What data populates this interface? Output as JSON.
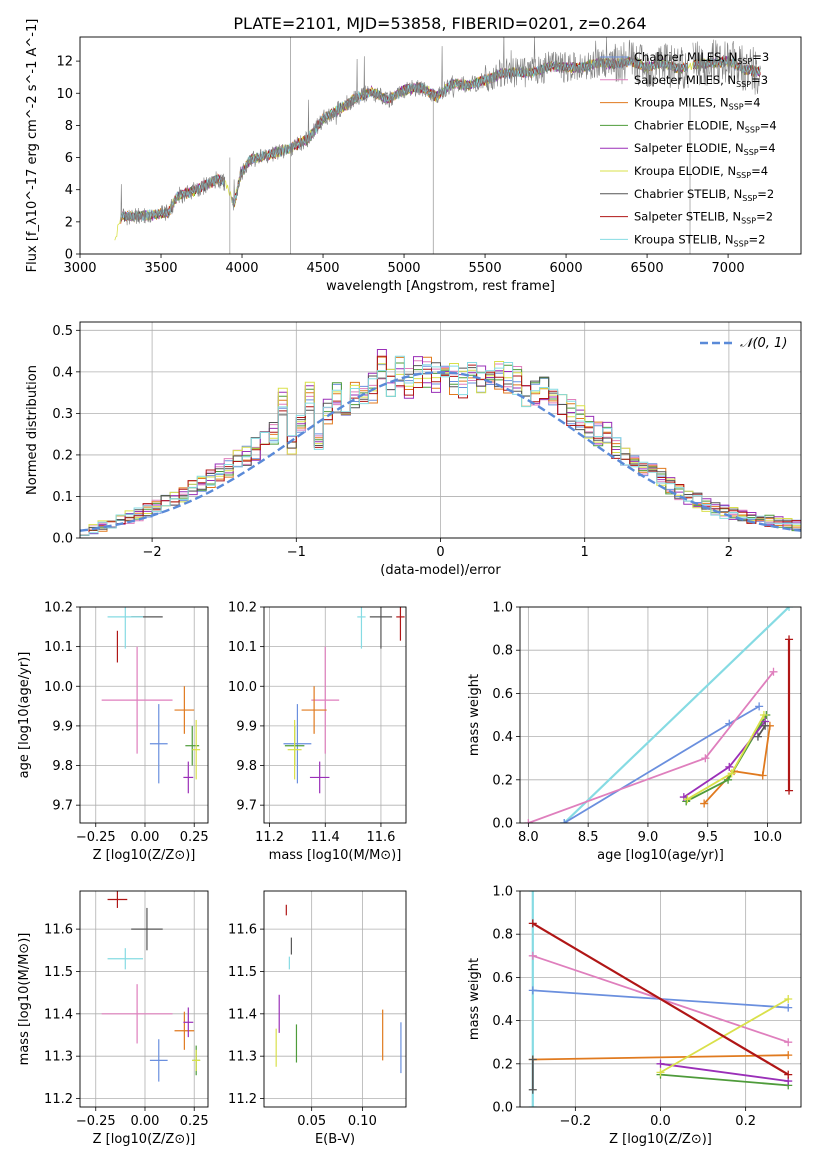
{
  "figure": {
    "title": "PLATE=2101, MJD=53858, FIBERID=0201, z=0.264"
  },
  "series_styles": [
    {
      "name": "Chabrier MILES",
      "nssp": "3",
      "color": "#6a8fde"
    },
    {
      "name": "Salpeter MILES",
      "nssp": "3",
      "color": "#df7fbd"
    },
    {
      "name": "Kroupa MILES",
      "nssp": "4",
      "color": "#e07a1f"
    },
    {
      "name": "Chabrier ELODIE",
      "nssp": "4",
      "color": "#4e9b3a"
    },
    {
      "name": "Salpeter ELODIE",
      "nssp": "4",
      "color": "#9a2fb8"
    },
    {
      "name": "Kroupa ELODIE",
      "nssp": "4",
      "color": "#d9e04a"
    },
    {
      "name": "Chabrier STELIB",
      "nssp": "2",
      "color": "#555555"
    },
    {
      "name": "Salpeter STELIB",
      "nssp": "2",
      "color": "#b01616"
    },
    {
      "name": "Kroupa STELIB",
      "nssp": "2",
      "color": "#86dbe3"
    }
  ],
  "chart_data": [
    {
      "id": "spectrum",
      "type": "line",
      "xlabel": "wavelength [Angstrom, rest frame]",
      "ylabel": "Flux [f_λ10^-17 erg cm^-2 s^-1 A^-1]",
      "xlim": [
        3000,
        7450
      ],
      "ylim": [
        0,
        13.5
      ],
      "xticks": [
        3000,
        3500,
        4000,
        4500,
        5000,
        5500,
        6000,
        6500,
        7000
      ],
      "yticks": [
        0,
        2,
        4,
        6,
        8,
        10,
        12
      ],
      "legend": "top-right",
      "data_color": "#808080",
      "continuum": [
        [
          3210,
          0.4
        ],
        [
          3230,
          1.6
        ],
        [
          3260,
          2.4
        ],
        [
          3300,
          2.3
        ],
        [
          3400,
          2.4
        ],
        [
          3500,
          2.5
        ],
        [
          3550,
          2.6
        ],
        [
          3600,
          3.6
        ],
        [
          3700,
          3.9
        ],
        [
          3800,
          4.4
        ],
        [
          3850,
          4.7
        ],
        [
          3900,
          4.4
        ],
        [
          3950,
          3.0
        ],
        [
          3990,
          4.9
        ],
        [
          4050,
          5.9
        ],
        [
          4150,
          6.1
        ],
        [
          4300,
          6.6
        ],
        [
          4400,
          7.1
        ],
        [
          4500,
          8.4
        ],
        [
          4600,
          9.0
        ],
        [
          4700,
          9.7
        ],
        [
          4800,
          10.1
        ],
        [
          4900,
          9.6
        ],
        [
          5000,
          10.2
        ],
        [
          5100,
          10.4
        ],
        [
          5200,
          9.8
        ],
        [
          5300,
          10.6
        ],
        [
          5400,
          10.5
        ],
        [
          5500,
          10.8
        ],
        [
          5600,
          11.2
        ],
        [
          5700,
          11.3
        ],
        [
          5800,
          11.3
        ],
        [
          5900,
          11.7
        ],
        [
          6000,
          11.6
        ],
        [
          6100,
          11.6
        ],
        [
          6200,
          11.9
        ],
        [
          6300,
          11.8
        ],
        [
          6400,
          12.0
        ],
        [
          6500,
          11.6
        ],
        [
          6600,
          11.9
        ],
        [
          6700,
          11.5
        ],
        [
          6800,
          11.8
        ],
        [
          6900,
          11.9
        ],
        [
          7000,
          12.0
        ],
        [
          7100,
          11.5
        ],
        [
          7200,
          11.3
        ]
      ],
      "gaps": [
        [
          3210,
          3250
        ],
        [
          3895,
          3935
        ],
        [
          6755,
          6780
        ]
      ]
    },
    {
      "id": "residuals",
      "type": "histogram",
      "xlabel": "(data-model)/error",
      "ylabel": "Normed distribution",
      "xlim": [
        -2.5,
        2.5
      ],
      "ylim": [
        0,
        0.52
      ],
      "xticks": [
        -2,
        -1,
        0,
        1,
        2
      ],
      "xticklabels": [
        "−2",
        "−1",
        "0",
        "1",
        "2"
      ],
      "yticks": [
        0,
        0.1,
        0.2,
        0.3,
        0.4,
        0.5
      ],
      "yticklabels": [
        "0.0",
        "0.1",
        "0.2",
        "0.3",
        "0.4",
        "0.5"
      ],
      "bin_width": 0.1,
      "legend": "top-right",
      "gauss_label": "𝒩(0, 1)",
      "gauss_color": "#5a8ad8",
      "hist_values": [
        0.02,
        0.022,
        0.03,
        0.035,
        0.042,
        0.05,
        0.057,
        0.066,
        0.075,
        0.085,
        0.095,
        0.106,
        0.118,
        0.131,
        0.143,
        0.157,
        0.171,
        0.186,
        0.2,
        0.215,
        0.23,
        0.248,
        0.33,
        0.225,
        0.272,
        0.345,
        0.23,
        0.3,
        0.34,
        0.28,
        0.35,
        0.355,
        0.36,
        0.42,
        0.38,
        0.405,
        0.37,
        0.4,
        0.395,
        0.385,
        0.4,
        0.38,
        0.37,
        0.385,
        0.375,
        0.39,
        0.39,
        0.385,
        0.38,
        0.34,
        0.35,
        0.36,
        0.33,
        0.32,
        0.3,
        0.29,
        0.27,
        0.25,
        0.25,
        0.22,
        0.2,
        0.19,
        0.175,
        0.16,
        0.145,
        0.125,
        0.11,
        0.1,
        0.09,
        0.08,
        0.07,
        0.064,
        0.058,
        0.052,
        0.047,
        0.043,
        0.04,
        0.037,
        0.034,
        0.032
      ]
    },
    {
      "id": "age-vs-Z",
      "type": "errorbar",
      "xlabel": "Z [log10(Z/Z⊙)]",
      "ylabel": "age  [log10(age/yr)]",
      "xlim": [
        -0.33,
        0.32
      ],
      "ylim": [
        9.655,
        10.2
      ],
      "xticks": [
        -0.25,
        0,
        0.25
      ],
      "xticklabels": [
        "−0.25",
        "0.00",
        "0.25"
      ],
      "yticks": [
        9.7,
        9.8,
        9.9,
        10.0,
        10.1,
        10.2
      ],
      "yticklabels": [
        "9.7",
        "9.8",
        "9.9",
        "10.0",
        "10.1",
        "10.2"
      ],
      "points": [
        {
          "s": 0,
          "x": 0.07,
          "y": 9.855,
          "xe": 0.09,
          "ye": 0.2
        },
        {
          "s": 1,
          "x": -0.04,
          "y": 9.965,
          "xe": 0.36,
          "ye": 0.27
        },
        {
          "s": 2,
          "x": 0.2,
          "y": 9.94,
          "xe": 0.1,
          "ye": 0.12
        },
        {
          "s": 3,
          "x": 0.24,
          "y": 9.85,
          "xe": 0.07,
          "ye": 0.1
        },
        {
          "s": 4,
          "x": 0.22,
          "y": 9.77,
          "xe": 0.05,
          "ye": 0.08
        },
        {
          "s": 5,
          "x": 0.26,
          "y": 9.84,
          "xe": 0.04,
          "ye": 0.15
        },
        {
          "s": 6,
          "x": 0.01,
          "y": 10.175,
          "xe": 0.16,
          "ye": 0.0
        },
        {
          "s": 7,
          "x": -0.14,
          "y": 10.1,
          "xe": 0.0,
          "ye": 0.08
        },
        {
          "s": 8,
          "x": -0.1,
          "y": 10.175,
          "xe": 0.18,
          "ye": 0.16
        }
      ]
    },
    {
      "id": "age-vs-mass",
      "type": "errorbar",
      "xlabel": "mass [log10(M/M⊙)]",
      "ylabel": "",
      "xlim": [
        11.18,
        11.69
      ],
      "ylim": [
        9.655,
        10.2
      ],
      "xticks": [
        11.2,
        11.4,
        11.6
      ],
      "xticklabels": [
        "11.2",
        "11.4",
        "11.6"
      ],
      "yticks": [
        9.7,
        9.8,
        9.9,
        10.0,
        10.1,
        10.2
      ],
      "yticklabels": [
        "9.7",
        "9.8",
        "9.9",
        "10.0",
        "10.1",
        "10.2"
      ],
      "points": [
        {
          "s": 0,
          "x": 11.3,
          "y": 9.855,
          "xe": 0.1,
          "ye": 0.2
        },
        {
          "s": 1,
          "x": 11.4,
          "y": 9.965,
          "xe": 0.1,
          "ye": 0.27
        },
        {
          "s": 2,
          "x": 11.36,
          "y": 9.94,
          "xe": 0.09,
          "ye": 0.12
        },
        {
          "s": 3,
          "x": 11.29,
          "y": 9.85,
          "xe": 0.07,
          "ye": 0.1
        },
        {
          "s": 4,
          "x": 11.38,
          "y": 9.77,
          "xe": 0.07,
          "ye": 0.08
        },
        {
          "s": 5,
          "x": 11.29,
          "y": 9.84,
          "xe": 0.05,
          "ye": 0.15
        },
        {
          "s": 6,
          "x": 11.6,
          "y": 10.175,
          "xe": 0.08,
          "ye": 0.16
        },
        {
          "s": 7,
          "x": 11.67,
          "y": 10.175,
          "xe": 0.03,
          "ye": 0.12
        },
        {
          "s": 8,
          "x": 11.53,
          "y": 10.175,
          "xe": 0.03,
          "ye": 0.16
        }
      ]
    },
    {
      "id": "mass-weight-vs-age",
      "type": "line",
      "xlabel": "age  [log10(age/yr)]",
      "ylabel": "mass weight",
      "xlim": [
        7.93,
        10.28
      ],
      "ylim": [
        0,
        1.0
      ],
      "xticks": [
        8.0,
        8.5,
        9.0,
        9.5,
        10.0
      ],
      "xticklabels": [
        "8.0",
        "8.5",
        "9.0",
        "9.5",
        "10.0"
      ],
      "yticks": [
        0,
        0.2,
        0.4,
        0.6,
        0.8,
        1.0
      ],
      "yticklabels": [
        "0.0",
        "0.2",
        "0.4",
        "0.6",
        "0.8",
        "1.0"
      ],
      "series": [
        {
          "s": 8,
          "points": [
            [
              8.3,
              0.0
            ],
            [
              10.18,
              1.0
            ]
          ]
        },
        {
          "s": 0,
          "points": [
            [
              8.3,
              0.0
            ],
            [
              9.68,
              0.46
            ],
            [
              9.93,
              0.54
            ]
          ]
        },
        {
          "s": 1,
          "points": [
            [
              8.0,
              0.0
            ],
            [
              9.48,
              0.3
            ],
            [
              10.05,
              0.7
            ]
          ]
        },
        {
          "s": 2,
          "points": [
            [
              9.47,
              0.09
            ],
            [
              9.72,
              0.24
            ],
            [
              9.96,
              0.22
            ],
            [
              10.02,
              0.45
            ]
          ]
        },
        {
          "s": 3,
          "points": [
            [
              9.32,
              0.1
            ],
            [
              9.67,
              0.2
            ],
            [
              9.99,
              0.5
            ]
          ]
        },
        {
          "s": 4,
          "points": [
            [
              9.3,
              0.12
            ],
            [
              9.68,
              0.26
            ],
            [
              9.98,
              0.47
            ]
          ]
        },
        {
          "s": 5,
          "points": [
            [
              9.33,
              0.11
            ],
            [
              9.7,
              0.23
            ],
            [
              9.97,
              0.5
            ]
          ]
        },
        {
          "s": 6,
          "points": [
            [
              9.92,
              0.4
            ],
            [
              9.98,
              0.45
            ]
          ]
        },
        {
          "s": 7,
          "points": [
            [
              10.18,
              0.15
            ],
            [
              10.18,
              0.85
            ]
          ]
        }
      ]
    },
    {
      "id": "mass-vs-Z",
      "type": "errorbar",
      "xlabel": "Z [log10(Z/Z⊙)]",
      "ylabel": "mass [log10(M/M⊙)]",
      "xlim": [
        -0.33,
        0.32
      ],
      "ylim": [
        11.18,
        11.69
      ],
      "xticks": [
        -0.25,
        0,
        0.25
      ],
      "xticklabels": [
        "−0.25",
        "0.00",
        "0.25"
      ],
      "yticks": [
        11.2,
        11.3,
        11.4,
        11.5,
        11.6
      ],
      "yticklabels": [
        "11.2",
        "11.3",
        "11.4",
        "11.5",
        "11.6"
      ],
      "points": [
        {
          "s": 0,
          "x": 0.07,
          "y": 11.29,
          "xe": 0.09,
          "ye": 0.1
        },
        {
          "s": 1,
          "x": -0.04,
          "y": 11.4,
          "xe": 0.36,
          "ye": 0.14
        },
        {
          "s": 2,
          "x": 0.2,
          "y": 11.36,
          "xe": 0.1,
          "ye": 0.09
        },
        {
          "s": 3,
          "x": 0.26,
          "y": 11.29,
          "xe": 0.04,
          "ye": 0.07
        },
        {
          "s": 4,
          "x": 0.22,
          "y": 11.38,
          "xe": 0.05,
          "ye": 0.07
        },
        {
          "s": 5,
          "x": 0.26,
          "y": 11.29,
          "xe": 0.04,
          "ye": 0.05
        },
        {
          "s": 6,
          "x": 0.01,
          "y": 11.6,
          "xe": 0.16,
          "ye": 0.1
        },
        {
          "s": 7,
          "x": -0.14,
          "y": 11.67,
          "xe": 0.1,
          "ye": 0.04
        },
        {
          "s": 8,
          "x": -0.1,
          "y": 11.53,
          "xe": 0.18,
          "ye": 0.05
        }
      ]
    },
    {
      "id": "mass-vs-ebv",
      "type": "errorbar",
      "xlabel": "E(B-V)",
      "ylabel": "",
      "xlim": [
        0.003,
        0.143
      ],
      "ylim": [
        11.18,
        11.69
      ],
      "xticks": [
        0.05,
        0.1
      ],
      "xticklabels": [
        "0.05",
        "0.10"
      ],
      "yticks": [
        11.2,
        11.3,
        11.4,
        11.5,
        11.6
      ],
      "yticklabels": [
        "11.2",
        "11.3",
        "11.4",
        "11.5",
        "11.6"
      ],
      "points": [
        {
          "s": 0,
          "x": 0.138,
          "y": 11.32,
          "xe": 0,
          "ye": 0.12
        },
        {
          "s": 2,
          "x": 0.12,
          "y": 11.35,
          "xe": 0,
          "ye": 0.12
        },
        {
          "s": 3,
          "x": 0.035,
          "y": 11.33,
          "xe": 0,
          "ye": 0.09
        },
        {
          "s": 4,
          "x": 0.018,
          "y": 11.4,
          "xe": 0,
          "ye": 0.09
        },
        {
          "s": 5,
          "x": 0.015,
          "y": 11.32,
          "xe": 0,
          "ye": 0.09
        },
        {
          "s": 6,
          "x": 0.03,
          "y": 11.56,
          "xe": 0,
          "ye": 0.04
        },
        {
          "s": 7,
          "x": 0.025,
          "y": 11.645,
          "xe": 0,
          "ye": 0.025
        },
        {
          "s": 8,
          "x": 0.028,
          "y": 11.52,
          "xe": 0,
          "ye": 0.03
        }
      ]
    },
    {
      "id": "mass-weight-vs-Z",
      "type": "line",
      "xlabel": "Z [log10(Z/Z⊙)]",
      "ylabel": "mass weight",
      "xlim": [
        -0.33,
        0.33
      ],
      "ylim": [
        0,
        1.0
      ],
      "xticks": [
        -0.2,
        0.0,
        0.2
      ],
      "xticklabels": [
        "−0.2",
        "0.0",
        "0.2"
      ],
      "yticks": [
        0,
        0.2,
        0.4,
        0.6,
        0.8,
        1.0
      ],
      "yticklabels": [
        "0.0",
        "0.2",
        "0.4",
        "0.6",
        "0.8",
        "1.0"
      ],
      "series": [
        {
          "s": 8,
          "points": [
            [
              -0.3,
              0.0
            ],
            [
              -0.3,
              1.0
            ]
          ]
        },
        {
          "s": 0,
          "points": [
            [
              -0.3,
              0.54
            ],
            [
              0.3,
              0.46
            ]
          ]
        },
        {
          "s": 1,
          "points": [
            [
              -0.3,
              0.7
            ],
            [
              0.3,
              0.3
            ]
          ]
        },
        {
          "s": 2,
          "points": [
            [
              -0.3,
              0.22
            ],
            [
              0.3,
              0.24
            ]
          ]
        },
        {
          "s": 3,
          "points": [
            [
              0.0,
              0.15
            ],
            [
              0.3,
              0.1
            ]
          ]
        },
        {
          "s": 4,
          "points": [
            [
              0.0,
              0.2
            ],
            [
              0.3,
              0.12
            ]
          ]
        },
        {
          "s": 5,
          "points": [
            [
              0.0,
              0.16
            ],
            [
              0.3,
              0.5
            ]
          ]
        },
        {
          "s": 6,
          "points": [
            [
              -0.3,
              0.08
            ],
            [
              -0.3,
              0.22
            ]
          ]
        },
        {
          "s": 7,
          "points": [
            [
              -0.3,
              0.85
            ],
            [
              0.3,
              0.15
            ]
          ]
        }
      ]
    }
  ]
}
